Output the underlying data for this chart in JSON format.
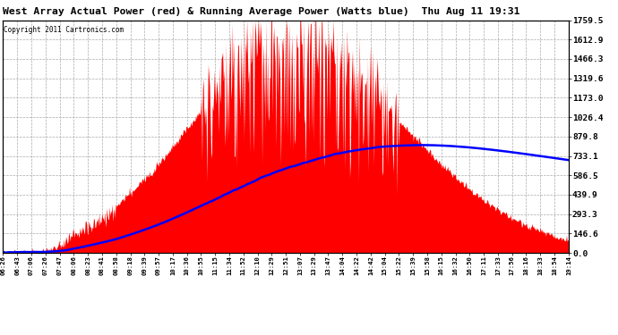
{
  "title": "West Array Actual Power (red) & Running Average Power (Watts blue)  Thu Aug 11 19:31",
  "copyright": "Copyright 2011 Cartronics.com",
  "yticks": [
    0.0,
    146.6,
    293.3,
    439.9,
    586.5,
    733.1,
    879.8,
    1026.4,
    1173.0,
    1319.6,
    1466.3,
    1612.9,
    1759.5
  ],
  "ymax": 1759.5,
  "ymin": 0.0,
  "xtick_labels": [
    "06:26",
    "06:43",
    "07:06",
    "07:26",
    "07:47",
    "08:06",
    "08:23",
    "08:41",
    "08:58",
    "09:18",
    "09:39",
    "09:57",
    "10:17",
    "10:36",
    "10:55",
    "11:15",
    "11:34",
    "11:52",
    "12:10",
    "12:29",
    "12:51",
    "13:07",
    "13:29",
    "13:47",
    "14:04",
    "14:22",
    "14:42",
    "15:04",
    "15:22",
    "15:39",
    "15:58",
    "16:15",
    "16:32",
    "16:50",
    "17:11",
    "17:33",
    "17:56",
    "18:16",
    "18:33",
    "18:54",
    "19:14"
  ],
  "bg_color": "#ffffff",
  "grid_color": "#aaaaaa",
  "title_color": "#000000",
  "bar_color": "#ff0000",
  "line_color": "#0000ff",
  "border_color": "#000000",
  "n_samples": 820
}
